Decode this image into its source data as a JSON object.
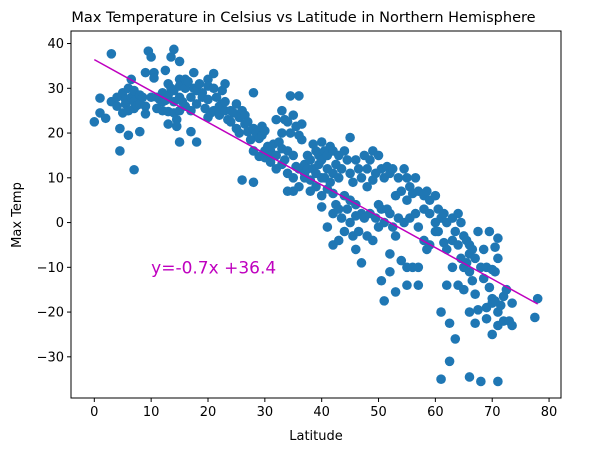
{
  "chart_data": {
    "type": "scatter",
    "title": "Max Temperature in Celsius vs Latitude in Northern Hemisphere",
    "xlabel": "Latitude",
    "ylabel": "Max Temp",
    "xlim": [
      -4.1,
      82.1
    ],
    "ylim": [
      -39.2,
      42.8
    ],
    "xticks": [
      0,
      10,
      20,
      30,
      40,
      50,
      60,
      70,
      80
    ],
    "yticks": [
      -30,
      -20,
      -10,
      0,
      10,
      20,
      30,
      40
    ],
    "grid": false,
    "point_color": "#1f77b4",
    "regression": {
      "slope": -0.7,
      "intercept": 36.4,
      "x_range": [
        0,
        78
      ],
      "color": "#bf00bf",
      "label": "y=-0.7x +36.4",
      "label_position": [
        10,
        -10
      ]
    },
    "points": [
      [
        0,
        22.5
      ],
      [
        1,
        27.8
      ],
      [
        1,
        24.5
      ],
      [
        2,
        23.3
      ],
      [
        3,
        27
      ],
      [
        3,
        37.7
      ],
      [
        4,
        26
      ],
      [
        4,
        28
      ],
      [
        4.5,
        21
      ],
      [
        4.5,
        16
      ],
      [
        5,
        29
      ],
      [
        5,
        24.5
      ],
      [
        5.5,
        26.5
      ],
      [
        5.5,
        27.5
      ],
      [
        6,
        25
      ],
      [
        6,
        30
      ],
      [
        6,
        19.5
      ],
      [
        6.5,
        32
      ],
      [
        6.5,
        28
      ],
      [
        7,
        29.5
      ],
      [
        7,
        27
      ],
      [
        7,
        25.5
      ],
      [
        7,
        11.8
      ],
      [
        7.5,
        26.2
      ],
      [
        8,
        28.5
      ],
      [
        8,
        26.5
      ],
      [
        8,
        20.3
      ],
      [
        8.5,
        28
      ],
      [
        9,
        33.5
      ],
      [
        9,
        26
      ],
      [
        9,
        24.3
      ],
      [
        9.5,
        38.3
      ],
      [
        10,
        37
      ],
      [
        10,
        28
      ],
      [
        10.5,
        33.5
      ],
      [
        10.5,
        32.3
      ],
      [
        11,
        28
      ],
      [
        11,
        25.5
      ],
      [
        11.5,
        27.5
      ],
      [
        12,
        27
      ],
      [
        12,
        25
      ],
      [
        12,
        29
      ],
      [
        12.5,
        34
      ],
      [
        12.5,
        27.3
      ],
      [
        13,
        31
      ],
      [
        13,
        28.5
      ],
      [
        13,
        24.8
      ],
      [
        13,
        22
      ],
      [
        13.5,
        37
      ],
      [
        13.5,
        30
      ],
      [
        14,
        38.7
      ],
      [
        14,
        29.5
      ],
      [
        14,
        27
      ],
      [
        14,
        24.5
      ],
      [
        14.5,
        23
      ],
      [
        14.5,
        21.5
      ],
      [
        15,
        36
      ],
      [
        15,
        32
      ],
      [
        15,
        30.5
      ],
      [
        15,
        28
      ],
      [
        15,
        25
      ],
      [
        15,
        18
      ],
      [
        15.5,
        27
      ],
      [
        16,
        32
      ],
      [
        16,
        30
      ],
      [
        16,
        26
      ],
      [
        16.5,
        31.5
      ],
      [
        17,
        28
      ],
      [
        17,
        25
      ],
      [
        17,
        20.3
      ],
      [
        17.5,
        33.5
      ],
      [
        17.5,
        30
      ],
      [
        18,
        29.5
      ],
      [
        18,
        26.5
      ],
      [
        18,
        18
      ],
      [
        18.5,
        31
      ],
      [
        19,
        29
      ],
      [
        19,
        28
      ],
      [
        19.5,
        25.5
      ],
      [
        20,
        32
      ],
      [
        20,
        30.5
      ],
      [
        20,
        27.5
      ],
      [
        20,
        23.5
      ],
      [
        20.5,
        24.5
      ],
      [
        21,
        33.3
      ],
      [
        21,
        30
      ],
      [
        21,
        25
      ],
      [
        21.5,
        28
      ],
      [
        22,
        26
      ],
      [
        22,
        24
      ],
      [
        22,
        24.8
      ],
      [
        22.5,
        29.5
      ],
      [
        22.5,
        26.5
      ],
      [
        23,
        31
      ],
      [
        23,
        27
      ],
      [
        23,
        25
      ],
      [
        23.5,
        23
      ],
      [
        24,
        25
      ],
      [
        24,
        22.5
      ],
      [
        24.5,
        24.5
      ],
      [
        25,
        26.5
      ],
      [
        25,
        21
      ],
      [
        25.5,
        23.5
      ],
      [
        25.5,
        20
      ],
      [
        26,
        25
      ],
      [
        26,
        9.5
      ],
      [
        26.5,
        24
      ],
      [
        26.5,
        22
      ],
      [
        27,
        22.5
      ],
      [
        27,
        20.3
      ],
      [
        27.5,
        18.5
      ],
      [
        28,
        29
      ],
      [
        28,
        21
      ],
      [
        28,
        16
      ],
      [
        28,
        9
      ],
      [
        28.5,
        20
      ],
      [
        29,
        18.8
      ],
      [
        29,
        14.8
      ],
      [
        29.5,
        21.5
      ],
      [
        29.5,
        19.5
      ],
      [
        30,
        20.5
      ],
      [
        30,
        16
      ],
      [
        30,
        14.5
      ],
      [
        30.5,
        17
      ],
      [
        31,
        16
      ],
      [
        31,
        15
      ],
      [
        31,
        13.5
      ],
      [
        31.5,
        17.5
      ],
      [
        32,
        23
      ],
      [
        32,
        15
      ],
      [
        32,
        12
      ],
      [
        32.5,
        18
      ],
      [
        33,
        25
      ],
      [
        33,
        20
      ],
      [
        33,
        16.5
      ],
      [
        33,
        13
      ],
      [
        33.5,
        23
      ],
      [
        33.5,
        14
      ],
      [
        34,
        22.5
      ],
      [
        34,
        16
      ],
      [
        34,
        11
      ],
      [
        34,
        7
      ],
      [
        34.5,
        28.3
      ],
      [
        34.5,
        20
      ],
      [
        35,
        24
      ],
      [
        35,
        15
      ],
      [
        35,
        10
      ],
      [
        35,
        7
      ],
      [
        35.5,
        21.5
      ],
      [
        35.5,
        12.5
      ],
      [
        36,
        28.3
      ],
      [
        36,
        19.5
      ],
      [
        36,
        12
      ],
      [
        36,
        8
      ],
      [
        36.5,
        22
      ],
      [
        36.5,
        18.5
      ],
      [
        37,
        13
      ],
      [
        37,
        11
      ],
      [
        37,
        10
      ],
      [
        37.5,
        15
      ],
      [
        37.5,
        12
      ],
      [
        38,
        14
      ],
      [
        38,
        9.5
      ],
      [
        38,
        7
      ],
      [
        38.5,
        17.5
      ],
      [
        38.5,
        12
      ],
      [
        39,
        16
      ],
      [
        39,
        11
      ],
      [
        39,
        8
      ],
      [
        39.5,
        15
      ],
      [
        39.5,
        13
      ],
      [
        40,
        18
      ],
      [
        40,
        14
      ],
      [
        40,
        10
      ],
      [
        40,
        6
      ],
      [
        40,
        3.5
      ],
      [
        40.5,
        16
      ],
      [
        40.5,
        10
      ],
      [
        41,
        15
      ],
      [
        41,
        12
      ],
      [
        41,
        7.5
      ],
      [
        41,
        -1
      ],
      [
        41.5,
        17
      ],
      [
        41.5,
        9
      ],
      [
        42,
        16
      ],
      [
        42,
        11
      ],
      [
        42,
        6.5
      ],
      [
        42,
        2
      ],
      [
        42,
        -5
      ],
      [
        42.5,
        13
      ],
      [
        42.5,
        4
      ],
      [
        43,
        15
      ],
      [
        43,
        10
      ],
      [
        43,
        3
      ],
      [
        43,
        -4
      ],
      [
        43.5,
        12
      ],
      [
        43.5,
        1
      ],
      [
        44,
        16
      ],
      [
        44,
        6
      ],
      [
        44,
        -2
      ],
      [
        44.5,
        14
      ],
      [
        44.5,
        3
      ],
      [
        45,
        19
      ],
      [
        45,
        11
      ],
      [
        45,
        5
      ],
      [
        45,
        0
      ],
      [
        45.5,
        9
      ],
      [
        45.5,
        -3
      ],
      [
        46,
        14
      ],
      [
        46,
        4
      ],
      [
        46,
        1.5
      ],
      [
        46,
        -6
      ],
      [
        46.5,
        12
      ],
      [
        46.5,
        -2
      ],
      [
        47,
        10
      ],
      [
        47,
        2
      ],
      [
        47,
        -9
      ],
      [
        47.5,
        15
      ],
      [
        47.5,
        1
      ],
      [
        48,
        12
      ],
      [
        48,
        8
      ],
      [
        48,
        -3
      ],
      [
        48.5,
        14
      ],
      [
        48.5,
        2
      ],
      [
        49,
        16
      ],
      [
        49,
        9.5
      ],
      [
        49,
        -4
      ],
      [
        49.5,
        11
      ],
      [
        49.5,
        1
      ],
      [
        50,
        15
      ],
      [
        50,
        4
      ],
      [
        50,
        -1
      ],
      [
        50.5,
        12
      ],
      [
        50.5,
        3
      ],
      [
        50.5,
        -13
      ],
      [
        51,
        10
      ],
      [
        51,
        0
      ],
      [
        51,
        -17.5
      ],
      [
        51.5,
        12.5
      ],
      [
        51.5,
        3
      ],
      [
        52,
        11
      ],
      [
        52,
        2
      ],
      [
        52,
        -7
      ],
      [
        52,
        -11
      ],
      [
        52.5,
        12
      ],
      [
        52.5,
        -1
      ],
      [
        53,
        6
      ],
      [
        53,
        -3
      ],
      [
        53,
        -15.5
      ],
      [
        53.5,
        10
      ],
      [
        53.5,
        1
      ],
      [
        54,
        7
      ],
      [
        54,
        -8.5
      ],
      [
        54.5,
        12
      ],
      [
        54.5,
        0
      ],
      [
        55,
        10
      ],
      [
        55,
        5
      ],
      [
        55,
        -10
      ],
      [
        55,
        -14
      ],
      [
        55.5,
        8
      ],
      [
        55.5,
        1
      ],
      [
        56,
        6.5
      ],
      [
        56,
        -10
      ],
      [
        56.5,
        10
      ],
      [
        56.5,
        2
      ],
      [
        57,
        7
      ],
      [
        57,
        -1
      ],
      [
        57,
        -10
      ],
      [
        57,
        -14
      ],
      [
        58,
        6
      ],
      [
        58,
        3
      ],
      [
        58,
        -4
      ],
      [
        58.5,
        7
      ],
      [
        58.5,
        -6
      ],
      [
        59,
        5
      ],
      [
        59,
        2
      ],
      [
        59,
        -5
      ],
      [
        60,
        6
      ],
      [
        60,
        0
      ],
      [
        60,
        -2
      ],
      [
        60.5,
        3
      ],
      [
        60.5,
        -2
      ],
      [
        61,
        1
      ],
      [
        61,
        -20
      ],
      [
        61,
        -35
      ],
      [
        61.5,
        2
      ],
      [
        61.5,
        -4.5
      ],
      [
        62,
        0
      ],
      [
        62,
        -6
      ],
      [
        62,
        -14
      ],
      [
        62.5,
        -22.5
      ],
      [
        62.5,
        -31
      ],
      [
        63,
        1
      ],
      [
        63,
        -4
      ],
      [
        63,
        -10
      ],
      [
        63.5,
        -2
      ],
      [
        63.5,
        -26
      ],
      [
        64,
        2
      ],
      [
        64,
        -5
      ],
      [
        64,
        -14
      ],
      [
        64.5,
        0
      ],
      [
        64.5,
        -8
      ],
      [
        65,
        -3
      ],
      [
        65,
        -10
      ],
      [
        65,
        -15
      ],
      [
        65.5,
        -4
      ],
      [
        65.5,
        -9
      ],
      [
        66,
        -5
      ],
      [
        66,
        -7
      ],
      [
        66,
        -11
      ],
      [
        66,
        -20
      ],
      [
        66,
        -34.5
      ],
      [
        66.5,
        -6
      ],
      [
        66.5,
        -13
      ],
      [
        67,
        -8
      ],
      [
        67,
        -16
      ],
      [
        67,
        -22.5
      ],
      [
        67.5,
        -2
      ],
      [
        67.5,
        -19.5
      ],
      [
        68,
        -10
      ],
      [
        68,
        -35.5
      ],
      [
        68.5,
        -6
      ],
      [
        68.5,
        -12.5
      ],
      [
        69,
        -10
      ],
      [
        69,
        -19
      ],
      [
        69,
        -21.5
      ],
      [
        69.5,
        -2
      ],
      [
        69.5,
        -14.5
      ],
      [
        70,
        -10.5
      ],
      [
        70,
        -17
      ],
      [
        70,
        -18
      ],
      [
        70,
        -25
      ],
      [
        70.5,
        -5.5
      ],
      [
        70.5,
        -11
      ],
      [
        70.5,
        -17.5
      ],
      [
        71,
        -3.5
      ],
      [
        71,
        -8
      ],
      [
        71,
        -20
      ],
      [
        71,
        -23
      ],
      [
        71,
        -35.5
      ],
      [
        71.5,
        -18.5
      ],
      [
        72,
        -16.5
      ],
      [
        72,
        -22
      ],
      [
        72.5,
        -15
      ],
      [
        73,
        -22
      ],
      [
        73.5,
        -18
      ],
      [
        73.5,
        -23
      ],
      [
        77.5,
        -21.2
      ],
      [
        78,
        -17
      ]
    ]
  }
}
